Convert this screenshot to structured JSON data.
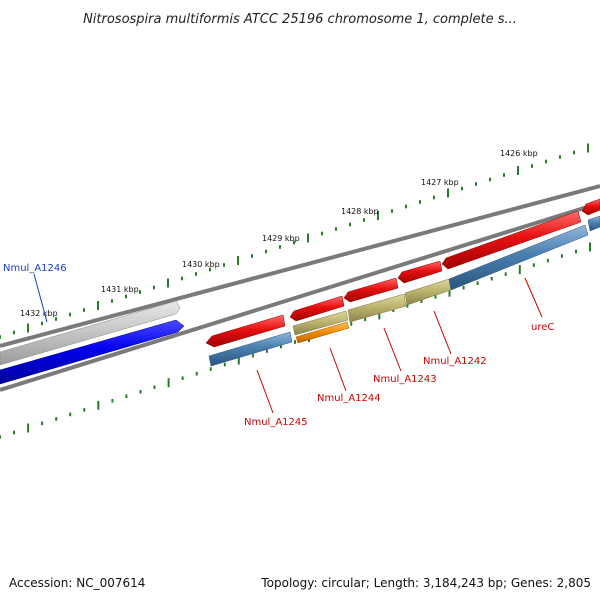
{
  "header": {
    "title": "Nitrosospira multiformis ATCC 25196 chromosome 1, complete s..."
  },
  "ruler": {
    "tick_labels": [
      "1426 kbp",
      "1427 kbp",
      "1428 kbp",
      "1429 kbp",
      "1430 kbp",
      "1431 kbp",
      "1432 kbp"
    ],
    "tick_color": "#2a7a2a"
  },
  "genes": [
    {
      "name": "Nmul_A1246",
      "label": "Nmul_A1246",
      "color": "#0000ee",
      "label_color": "#1f3fbf"
    },
    {
      "name": "Nmul_A1245",
      "label": "Nmul_A1245",
      "color": "#e01010",
      "label_color": "#cc0000"
    },
    {
      "name": "Nmul_A1244",
      "label": "Nmul_A1244",
      "color": "#e01010",
      "label_color": "#cc0000"
    },
    {
      "name": "Nmul_A1243",
      "label": "Nmul_A1243",
      "color": "#e01010",
      "label_color": "#cc0000"
    },
    {
      "name": "Nmul_A1242",
      "label": "Nmul_A1242",
      "color": "#e01010",
      "label_color": "#cc0000"
    },
    {
      "name": "ureC",
      "label": "ureC",
      "color": "#e01010",
      "label_color": "#cc0000"
    }
  ],
  "feature_colors": {
    "cds": "#e01010",
    "gene_forward": "#4a7fb0",
    "domain": "#b8b06a",
    "misc": "#f08c00",
    "other_gene": "#c0c0c0",
    "backbone": "#808080"
  },
  "footer": {
    "accession": "Accession: NC_007614",
    "summary": "Topology: circular; Length: 3,184,243 bp; Genes: 2,805"
  }
}
